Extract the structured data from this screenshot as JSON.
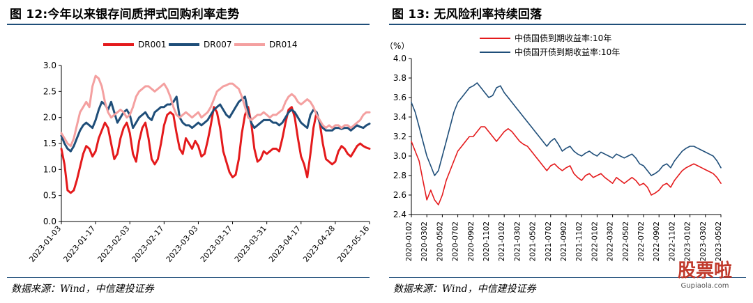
{
  "left": {
    "figure_title": "图 12:今年以来银存间质押式回购利率走势",
    "source": "数据来源：Wind，中信建投证券"
  },
  "right": {
    "figure_title": "图 13: 无风险利率持续回落",
    "source": "数据来源：Wind，中信建投证券"
  },
  "watermark": {
    "text": "股票啦",
    "sub": "Gupiaola.com"
  },
  "chart_data": [
    {
      "type": "line",
      "title": "",
      "xlabel": "",
      "ylabel": "",
      "ylim": [
        0,
        3.0
      ],
      "yticks": [
        0.0,
        0.5,
        1.0,
        1.5,
        2.0,
        2.5,
        3.0
      ],
      "ytick_labels": [
        "0.0",
        "0.5",
        "1.0",
        "1.5",
        "2.0",
        "2.5",
        "3.0"
      ],
      "x_tick_labels": [
        "2023-01-03",
        "2023-01-17",
        "2023-02-03",
        "2023-02-17",
        "2023-03-03",
        "2023-03-17",
        "2023-03-31",
        "2023-04-17",
        "2023-04-28",
        "2023-05-16"
      ],
      "n_points": 100,
      "grid": false,
      "legend_position": "top",
      "series": [
        {
          "name": "DR001",
          "color": "#e41a1c",
          "values": [
            1.4,
            1.1,
            0.6,
            0.55,
            0.6,
            0.8,
            1.05,
            1.3,
            1.45,
            1.4,
            1.25,
            1.35,
            1.6,
            1.75,
            1.9,
            1.8,
            1.5,
            1.2,
            1.3,
            1.6,
            1.8,
            1.9,
            1.7,
            1.3,
            1.15,
            1.55,
            1.8,
            1.9,
            1.6,
            1.2,
            1.1,
            1.2,
            1.5,
            1.85,
            2.05,
            2.1,
            2.05,
            1.7,
            1.4,
            1.3,
            1.6,
            1.5,
            1.4,
            1.55,
            1.45,
            1.25,
            1.3,
            1.55,
            1.85,
            2.2,
            2.1,
            1.8,
            1.35,
            1.15,
            0.95,
            0.85,
            0.9,
            1.2,
            1.7,
            2.05,
            2.2,
            1.9,
            1.4,
            1.15,
            1.2,
            1.35,
            1.3,
            1.35,
            1.4,
            1.4,
            1.35,
            1.6,
            1.9,
            2.15,
            2.2,
            2.0,
            1.6,
            1.25,
            1.1,
            0.85,
            1.3,
            1.8,
            2.1,
            1.9,
            1.5,
            1.2,
            1.15,
            1.1,
            1.15,
            1.35,
            1.45,
            1.4,
            1.3,
            1.25,
            1.35,
            1.45,
            1.5,
            1.45,
            1.42,
            1.4
          ]
        },
        {
          "name": "DR007",
          "color": "#1f4e79",
          "values": [
            1.65,
            1.5,
            1.4,
            1.35,
            1.45,
            1.6,
            1.75,
            1.85,
            1.9,
            1.85,
            1.8,
            1.95,
            2.15,
            2.3,
            2.25,
            2.15,
            2.3,
            2.1,
            1.9,
            2.0,
            2.1,
            2.15,
            2.05,
            1.8,
            1.9,
            2.0,
            2.05,
            2.1,
            2.0,
            1.95,
            2.1,
            2.15,
            2.2,
            2.2,
            2.25,
            2.25,
            2.3,
            2.4,
            2.0,
            1.9,
            1.85,
            1.85,
            1.8,
            1.85,
            1.9,
            1.85,
            1.9,
            1.95,
            2.05,
            2.15,
            2.2,
            2.25,
            2.15,
            2.05,
            2.0,
            2.1,
            2.2,
            2.3,
            2.35,
            2.4,
            2.1,
            1.9,
            1.8,
            1.85,
            1.9,
            1.95,
            1.95,
            1.95,
            1.9,
            1.9,
            1.85,
            1.9,
            2.0,
            2.1,
            2.15,
            2.1,
            2.0,
            1.9,
            1.85,
            1.8,
            2.05,
            2.15,
            2.1,
            1.9,
            1.8,
            1.75,
            1.75,
            1.75,
            1.8,
            1.8,
            1.78,
            1.8,
            1.8,
            1.75,
            1.8,
            1.85,
            1.82,
            1.8,
            1.85,
            1.88
          ]
        },
        {
          "name": "DR014",
          "color": "#f4a0a0",
          "values": [
            1.7,
            1.6,
            1.5,
            1.45,
            1.6,
            1.85,
            2.1,
            2.2,
            2.3,
            2.2,
            2.6,
            2.8,
            2.75,
            2.6,
            2.3,
            2.1,
            2.0,
            2.05,
            2.1,
            2.15,
            2.1,
            2.0,
            2.05,
            2.2,
            2.4,
            2.5,
            2.55,
            2.6,
            2.6,
            2.55,
            2.5,
            2.55,
            2.6,
            2.65,
            2.55,
            2.4,
            2.2,
            2.05,
            2.0,
            2.05,
            2.1,
            2.05,
            2.0,
            2.05,
            2.1,
            2.0,
            2.05,
            2.1,
            2.2,
            2.35,
            2.5,
            2.55,
            2.6,
            2.62,
            2.65,
            2.65,
            2.6,
            2.55,
            2.4,
            2.2,
            2.0,
            1.95,
            2.0,
            2.05,
            2.05,
            2.1,
            2.05,
            2.0,
            2.05,
            2.05,
            2.1,
            2.15,
            2.3,
            2.4,
            2.45,
            2.4,
            2.3,
            2.25,
            2.3,
            2.35,
            2.3,
            2.2,
            2.05,
            1.95,
            1.85,
            1.8,
            1.85,
            1.8,
            1.85,
            1.85,
            1.8,
            1.85,
            1.85,
            1.8,
            1.85,
            1.9,
            1.95,
            2.05,
            2.1,
            2.1
          ]
        }
      ]
    },
    {
      "type": "line",
      "title": "",
      "ylabel": "（%）",
      "xlabel": "",
      "ylim": [
        2.4,
        4.0
      ],
      "yticks": [
        2.4,
        2.6,
        2.8,
        3.0,
        3.2,
        3.4,
        3.6,
        3.8,
        4.0
      ],
      "ytick_labels": [
        "2.4",
        "2.6",
        "2.8",
        "3.0",
        "3.2",
        "3.4",
        "3.6",
        "3.8",
        "4.0"
      ],
      "x_tick_labels": [
        "2020-0102",
        "2020-0302",
        "2020-0502",
        "2020-0702",
        "2020-0902",
        "2020-1102",
        "2021-0102",
        "2021-0302",
        "2021-0502",
        "2021-0702",
        "2021-0902",
        "2021-1102",
        "2022-0102",
        "2022-0302",
        "2022-0502",
        "2022-0702",
        "2022-0902",
        "2022-1102",
        "2023-0102",
        "2023-0302",
        "2023-0502"
      ],
      "n_points": 81,
      "grid": false,
      "legend_position": "top-left",
      "series": [
        {
          "name": "中债国债到期收益率:10年",
          "color": "#e41a1c",
          "values": [
            3.15,
            3.05,
            2.95,
            2.75,
            2.55,
            2.65,
            2.55,
            2.5,
            2.6,
            2.75,
            2.85,
            2.95,
            3.05,
            3.1,
            3.15,
            3.2,
            3.2,
            3.25,
            3.3,
            3.3,
            3.25,
            3.2,
            3.15,
            3.2,
            3.25,
            3.28,
            3.25,
            3.2,
            3.15,
            3.12,
            3.1,
            3.05,
            3.0,
            2.95,
            2.9,
            2.85,
            2.9,
            2.92,
            2.88,
            2.85,
            2.88,
            2.9,
            2.82,
            2.78,
            2.75,
            2.8,
            2.82,
            2.78,
            2.8,
            2.82,
            2.78,
            2.75,
            2.72,
            2.78,
            2.75,
            2.72,
            2.75,
            2.78,
            2.75,
            2.7,
            2.72,
            2.68,
            2.6,
            2.62,
            2.65,
            2.7,
            2.72,
            2.68,
            2.75,
            2.8,
            2.85,
            2.88,
            2.9,
            2.92,
            2.9,
            2.88,
            2.86,
            2.84,
            2.82,
            2.78,
            2.72
          ]
        },
        {
          "name": "中债国开债到期收益率:10年",
          "color": "#1f4e79",
          "values": [
            3.55,
            3.45,
            3.3,
            3.15,
            3.0,
            2.9,
            2.8,
            2.85,
            3.0,
            3.15,
            3.3,
            3.45,
            3.55,
            3.6,
            3.65,
            3.7,
            3.72,
            3.75,
            3.7,
            3.65,
            3.6,
            3.62,
            3.7,
            3.72,
            3.65,
            3.6,
            3.55,
            3.5,
            3.45,
            3.4,
            3.35,
            3.3,
            3.25,
            3.2,
            3.15,
            3.1,
            3.15,
            3.18,
            3.12,
            3.05,
            3.08,
            3.1,
            3.05,
            3.02,
            3.0,
            3.03,
            3.05,
            3.02,
            3.0,
            3.04,
            3.02,
            3.0,
            2.98,
            3.02,
            3.0,
            2.98,
            3.0,
            3.02,
            2.98,
            2.92,
            2.9,
            2.85,
            2.8,
            2.82,
            2.85,
            2.9,
            2.92,
            2.88,
            2.95,
            3.0,
            3.05,
            3.08,
            3.1,
            3.1,
            3.08,
            3.06,
            3.04,
            3.02,
            3.0,
            2.95,
            2.88
          ]
        }
      ]
    }
  ]
}
